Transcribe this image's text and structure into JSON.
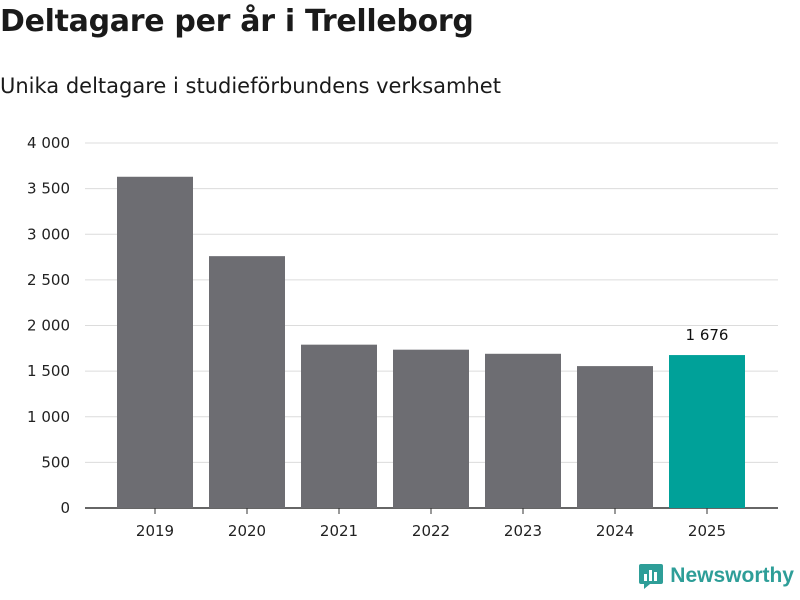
{
  "header": {
    "title": "Deltagare per år i Trelleborg",
    "subtitle": "Unika deltagare i studieförbundens verksamhet"
  },
  "brand": {
    "name": "Newsworthy"
  },
  "colors": {
    "bar": "#6d6d72",
    "highlight": "#00a199",
    "grid": "#dcdcdc",
    "axis": "#333333",
    "brand": "#2e9e98"
  },
  "chart_data": {
    "type": "bar",
    "title": "Deltagare per år i Trelleborg",
    "subtitle": "Unika deltagare i studieförbundens verksamhet",
    "categories": [
      "2019",
      "2020",
      "2021",
      "2022",
      "2023",
      "2024",
      "2025"
    ],
    "values": [
      3630,
      2760,
      1790,
      1735,
      1690,
      1555,
      1676
    ],
    "highlight_index": 6,
    "data_labels": [
      {
        "index": 6,
        "text": "1 676"
      }
    ],
    "ylim": [
      0,
      4000
    ],
    "yticks": [
      0,
      500,
      1000,
      1500,
      2000,
      2500,
      3000,
      3500,
      4000
    ],
    "ytick_labels": [
      "0",
      "500",
      "1 000",
      "1 500",
      "2 000",
      "2 500",
      "3 000",
      "3 500",
      "4 000"
    ],
    "xlabel": "",
    "ylabel": "",
    "grid": true
  }
}
